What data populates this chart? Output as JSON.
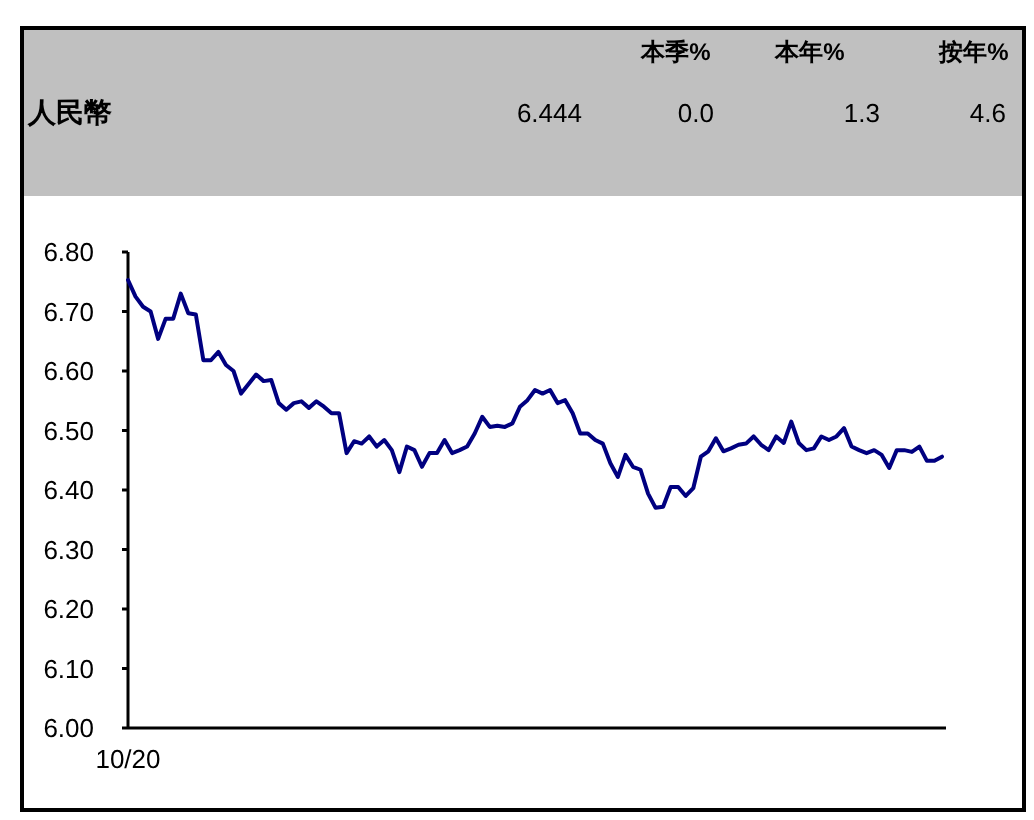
{
  "chart_data": {
    "type": "line",
    "title": "人民幣",
    "annotations": [
      "本季%",
      "本年%",
      "按年%",
      "6.444",
      "0.0",
      "1.3",
      "4.6"
    ],
    "categories": [
      "10/20",
      null,
      null,
      null,
      null,
      null,
      null,
      null,
      null,
      null,
      null,
      null,
      null,
      null,
      null,
      null,
      null,
      null,
      null,
      null,
      null,
      null,
      null,
      null,
      null,
      null,
      null,
      null,
      null,
      null,
      null,
      null,
      null,
      null,
      null,
      null,
      null,
      null,
      null,
      null,
      null,
      null,
      null,
      null,
      null,
      null,
      null,
      null,
      null,
      null,
      null,
      null,
      null,
      null,
      null,
      null,
      null,
      null,
      null,
      null,
      null,
      null,
      null,
      null,
      null,
      null,
      null,
      null,
      null,
      null,
      null,
      null,
      null,
      null,
      null,
      null,
      null,
      null,
      null,
      null,
      null,
      null,
      null,
      null,
      null,
      null,
      null,
      null,
      null,
      null,
      null,
      null,
      null,
      null,
      null,
      null,
      null,
      null,
      null,
      null,
      null,
      null,
      null,
      null,
      null,
      null,
      null,
      null,
      null
    ],
    "series": [
      {
        "color": "#000080",
        "values": [
          6.753,
          6.725,
          6.708,
          6.7,
          6.654,
          6.688,
          6.688,
          6.73,
          6.697,
          6.695,
          6.618,
          6.618,
          6.632,
          6.61,
          6.6,
          6.562,
          6.578,
          6.594,
          6.583,
          6.585,
          6.546,
          6.535,
          6.546,
          6.549,
          6.538,
          6.549,
          6.54,
          6.529,
          6.529,
          6.462,
          6.482,
          6.478,
          6.49,
          6.473,
          6.484,
          6.467,
          6.43,
          6.473,
          6.467,
          6.439,
          6.462,
          6.462,
          6.484,
          6.462,
          6.467,
          6.473,
          6.495,
          6.523,
          6.506,
          6.508,
          6.506,
          6.512,
          6.54,
          6.551,
          6.568,
          6.562,
          6.568,
          6.546,
          6.551,
          6.529,
          6.495,
          6.495,
          6.484,
          6.478,
          6.445,
          6.422,
          6.459,
          6.439,
          6.434,
          6.394,
          6.37,
          6.372,
          6.405,
          6.405,
          6.39,
          6.403,
          6.456,
          6.465,
          6.487,
          6.465,
          6.47,
          6.476,
          6.478,
          6.49,
          6.476,
          6.467,
          6.49,
          6.479,
          6.515,
          6.479,
          6.467,
          6.47,
          6.49,
          6.484,
          6.49,
          6.504,
          6.473,
          6.467,
          6.462,
          6.467,
          6.459,
          6.437,
          6.467,
          6.467,
          6.464,
          6.473,
          6.449,
          6.449,
          6.456
        ]
      }
    ],
    "ylim": [
      6.0,
      6.8
    ],
    "yticks": [
      {
        "value": 6.0,
        "label": "6.00"
      },
      {
        "value": 6.1,
        "label": "6.10"
      },
      {
        "value": 6.2,
        "label": "6.20"
      },
      {
        "value": 6.3,
        "label": "6.30"
      },
      {
        "value": 6.4,
        "label": "6.40"
      },
      {
        "value": 6.5,
        "label": "6.50"
      },
      {
        "value": 6.6,
        "label": "6.60"
      },
      {
        "value": 6.7,
        "label": "6.70"
      },
      {
        "value": 6.8,
        "label": "6.80"
      }
    ],
    "grid": false,
    "marker": "none",
    "line_style": "solid"
  }
}
